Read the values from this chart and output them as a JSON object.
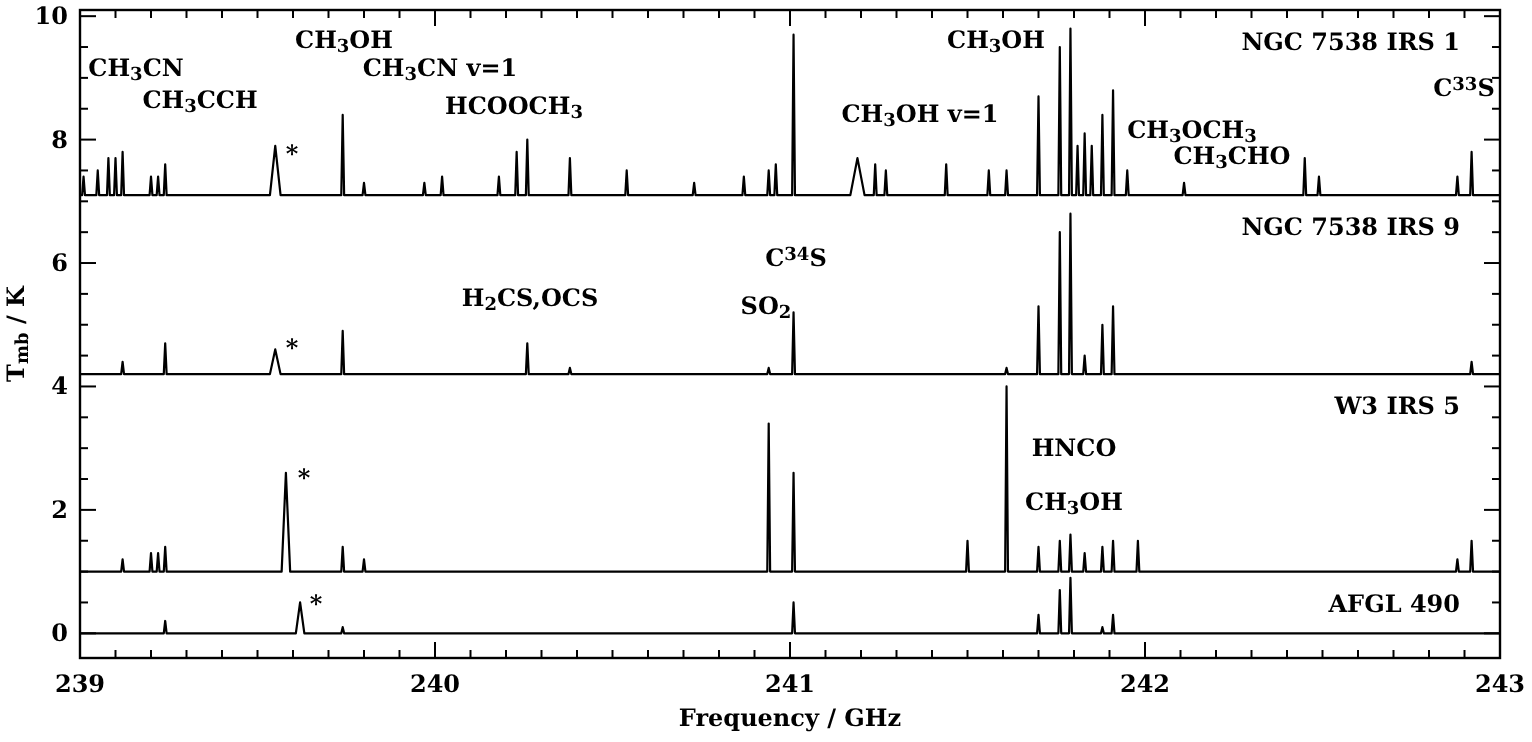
{
  "chart_data": {
    "type": "line",
    "xlabel": "Frequency / GHz",
    "ylabel": "T$_{mb}$ / K",
    "xlim": [
      239,
      243
    ],
    "ylim": [
      -0.4,
      10.1
    ],
    "xticks": [
      239,
      {
        "value": 239.1,
        "label": null
      },
      {
        "value": 239.2,
        "label": null
      },
      {
        "value": 239.3,
        "label": null
      },
      {
        "value": 239.4,
        "label": null
      },
      {
        "value": 239.5,
        "label": null
      },
      {
        "value": 239.6,
        "label": null
      },
      {
        "value": 239.7,
        "label": null
      },
      {
        "value": 239.8,
        "label": null
      },
      {
        "value": 239.9,
        "label": null
      },
      240,
      {
        "value": 240.1,
        "label": null
      },
      {
        "value": 240.2,
        "label": null
      },
      {
        "value": 240.3,
        "label": null
      },
      {
        "value": 240.4,
        "label": null
      },
      {
        "value": 240.5,
        "label": null
      },
      {
        "value": 240.6,
        "label": null
      },
      {
        "value": 240.7,
        "label": null
      },
      {
        "value": 240.8,
        "label": null
      },
      {
        "value": 240.9,
        "label": null
      },
      241,
      {
        "value": 241.1,
        "label": null
      },
      {
        "value": 241.2,
        "label": null
      },
      {
        "value": 241.3,
        "label": null
      },
      {
        "value": 241.4,
        "label": null
      },
      {
        "value": 241.5,
        "label": null
      },
      {
        "value": 241.6,
        "label": null
      },
      {
        "value": 241.7,
        "label": null
      },
      {
        "value": 241.8,
        "label": null
      },
      {
        "value": 241.9,
        "label": null
      },
      242,
      {
        "value": 242.1,
        "label": null
      },
      {
        "value": 242.2,
        "label": null
      },
      {
        "value": 242.3,
        "label": null
      },
      {
        "value": 242.4,
        "label": null
      },
      {
        "value": 242.5,
        "label": null
      },
      {
        "value": 242.6,
        "label": null
      },
      {
        "value": 242.7,
        "label": null
      },
      {
        "value": 242.8,
        "label": null
      },
      {
        "value": 242.9,
        "label": null
      },
      243
    ],
    "yticks": [
      0,
      {
        "value": 0.5,
        "label": null
      },
      {
        "value": 1,
        "label": null
      },
      {
        "value": 1.5,
        "label": null
      },
      2,
      {
        "value": 2.5,
        "label": null
      },
      {
        "value": 3,
        "label": null
      },
      {
        "value": 3.5,
        "label": null
      },
      4,
      {
        "value": 4.5,
        "label": null
      },
      {
        "value": 5,
        "label": null
      },
      {
        "value": 5.5,
        "label": null
      },
      6,
      {
        "value": 6.5,
        "label": null
      },
      {
        "value": 7,
        "label": null
      },
      {
        "value": 7.5,
        "label": null
      },
      8,
      {
        "value": 8.5,
        "label": null
      },
      {
        "value": 9,
        "label": null
      },
      {
        "value": 9.5,
        "label": null
      },
      10
    ],
    "grid": false,
    "legend": "right",
    "marker": "none",
    "line_style": "solid",
    "series": [
      {
        "name": "NGC 7538 IRS 1",
        "color": "#000000",
        "x": [
          239,
          239.006,
          239.01,
          239.014,
          239.046,
          239.05,
          239.054,
          239.076,
          239.08,
          239.084,
          239.096,
          239.1,
          239.104,
          239.116,
          239.12,
          239.124,
          239.196,
          239.2,
          239.204,
          239.216,
          239.22,
          239.224,
          239.236,
          239.24,
          239.244,
          239.535,
          239.55,
          239.565,
          239.736,
          239.74,
          239.744,
          239.796,
          239.8,
          239.804,
          239.966,
          239.97,
          239.974,
          240.016,
          240.02,
          240.024,
          240.176,
          240.18,
          240.184,
          240.226,
          240.23,
          240.234,
          240.256,
          240.26,
          240.264,
          240.376,
          240.38,
          240.384,
          240.536,
          240.54,
          240.544,
          240.726,
          240.73,
          240.734,
          240.866,
          240.87,
          240.874,
          240.936,
          240.94,
          240.944,
          240.956,
          240.96,
          240.964,
          241.006,
          241.01,
          241.014,
          241.17,
          241.19,
          241.21,
          241.236,
          241.24,
          241.244,
          241.266,
          241.27,
          241.274,
          241.436,
          241.44,
          241.444,
          241.556,
          241.56,
          241.564,
          241.606,
          241.61,
          241.614,
          241.696,
          241.7,
          241.704,
          241.756,
          241.76,
          241.764,
          241.786,
          241.79,
          241.794,
          241.806,
          241.81,
          241.814,
          241.826,
          241.83,
          241.834,
          241.846,
          241.85,
          241.854,
          241.876,
          241.88,
          241.884,
          241.906,
          241.91,
          241.914,
          241.946,
          241.95,
          241.954,
          242.106,
          242.11,
          242.114,
          242.446,
          242.45,
          242.454,
          242.486,
          242.49,
          242.494,
          242.876,
          242.88,
          242.884,
          242.916,
          242.92,
          242.924,
          243
        ],
        "values": [
          7.1,
          7.1,
          7.4,
          7.1,
          7.1,
          7.5,
          7.1,
          7.1,
          7.7,
          7.1,
          7.1,
          7.7,
          7.1,
          7.1,
          7.8,
          7.1,
          7.1,
          7.4,
          7.1,
          7.1,
          7.4,
          7.1,
          7.1,
          7.6,
          7.1,
          7.1,
          7.9,
          7.1,
          7.1,
          8.4,
          7.1,
          7.1,
          7.3,
          7.1,
          7.1,
          7.3,
          7.1,
          7.1,
          7.4,
          7.1,
          7.1,
          7.4,
          7.1,
          7.1,
          7.8,
          7.1,
          7.1,
          8.0,
          7.1,
          7.1,
          7.7,
          7.1,
          7.1,
          7.5,
          7.1,
          7.1,
          7.3,
          7.1,
          7.1,
          7.4,
          7.1,
          7.1,
          7.5,
          7.1,
          7.1,
          7.6,
          7.1,
          7.1,
          9.7,
          7.1,
          7.1,
          7.7,
          7.1,
          7.1,
          7.6,
          7.1,
          7.1,
          7.5,
          7.1,
          7.1,
          7.6,
          7.1,
          7.1,
          7.5,
          7.1,
          7.1,
          7.5,
          7.1,
          7.1,
          8.7,
          7.1,
          7.1,
          9.5,
          7.1,
          7.1,
          9.8,
          7.1,
          7.1,
          7.9,
          7.1,
          7.1,
          8.1,
          7.1,
          7.1,
          7.9,
          7.1,
          7.1,
          8.4,
          7.1,
          7.1,
          8.8,
          7.1,
          7.1,
          7.5,
          7.1,
          7.1,
          7.3,
          7.1,
          7.1,
          7.7,
          7.1,
          7.1,
          7.4,
          7.1,
          7.1,
          7.4,
          7.1,
          7.1,
          7.8,
          7.1,
          7.1
        ]
      },
      {
        "name": "NGC 7538 IRS 9",
        "color": "#000000",
        "x": [
          239,
          239.116,
          239.12,
          239.124,
          239.236,
          239.24,
          239.244,
          239.535,
          239.55,
          239.565,
          239.736,
          239.74,
          239.744,
          240.256,
          240.26,
          240.264,
          240.376,
          240.38,
          240.384,
          240.936,
          240.94,
          240.944,
          241.006,
          241.01,
          241.014,
          241.606,
          241.61,
          241.614,
          241.696,
          241.7,
          241.704,
          241.756,
          241.76,
          241.764,
          241.786,
          241.79,
          241.794,
          241.826,
          241.83,
          241.834,
          241.876,
          241.88,
          241.884,
          241.906,
          241.91,
          241.914,
          242.916,
          242.92,
          242.924,
          243
        ],
        "values": [
          4.2,
          4.2,
          4.4,
          4.2,
          4.2,
          4.7,
          4.2,
          4.2,
          4.6,
          4.2,
          4.2,
          4.9,
          4.2,
          4.2,
          4.7,
          4.2,
          4.2,
          4.3,
          4.2,
          4.2,
          4.3,
          4.2,
          4.2,
          5.2,
          4.2,
          4.2,
          4.3,
          4.2,
          4.2,
          5.3,
          4.2,
          4.2,
          6.5,
          4.2,
          4.2,
          6.8,
          4.2,
          4.2,
          4.5,
          4.2,
          4.2,
          5.0,
          4.2,
          4.2,
          5.3,
          4.2,
          4.2,
          4.4,
          4.2,
          4.2
        ]
      },
      {
        "name": "W3 IRS 5",
        "color": "#000000",
        "x": [
          239,
          239.116,
          239.12,
          239.124,
          239.196,
          239.2,
          239.204,
          239.216,
          239.22,
          239.224,
          239.236,
          239.24,
          239.244,
          239.568,
          239.58,
          239.592,
          239.736,
          239.74,
          239.744,
          239.796,
          239.8,
          239.804,
          240.936,
          240.94,
          240.944,
          241.006,
          241.01,
          241.014,
          241.496,
          241.5,
          241.504,
          241.606,
          241.61,
          241.614,
          241.696,
          241.7,
          241.704,
          241.756,
          241.76,
          241.764,
          241.786,
          241.79,
          241.794,
          241.826,
          241.83,
          241.834,
          241.876,
          241.88,
          241.884,
          241.906,
          241.91,
          241.914,
          241.976,
          241.98,
          241.984,
          242.876,
          242.88,
          242.884,
          242.916,
          242.92,
          242.924,
          243
        ],
        "values": [
          1.0,
          1.0,
          1.2,
          1.0,
          1.0,
          1.3,
          1.0,
          1.0,
          1.3,
          1.0,
          1.0,
          1.4,
          1.0,
          1.0,
          2.6,
          1.0,
          1.0,
          1.4,
          1.0,
          1.0,
          1.2,
          1.0,
          1.0,
          3.4,
          1.0,
          1.0,
          2.6,
          1.0,
          1.0,
          1.5,
          1.0,
          1.0,
          4.0,
          1.0,
          1.0,
          1.4,
          1.0,
          1.0,
          1.5,
          1.0,
          1.0,
          1.6,
          1.0,
          1.0,
          1.3,
          1.0,
          1.0,
          1.4,
          1.0,
          1.0,
          1.5,
          1.0,
          1.0,
          1.5,
          1.0,
          1.0,
          1.2,
          1.0,
          1.0,
          1.5,
          1.0,
          1.0
        ]
      },
      {
        "name": "AFGL 490",
        "color": "#000000",
        "x": [
          239,
          239.236,
          239.24,
          239.244,
          239.608,
          239.62,
          239.632,
          239.736,
          239.74,
          239.744,
          241.006,
          241.01,
          241.014,
          241.696,
          241.7,
          241.704,
          241.756,
          241.76,
          241.764,
          241.786,
          241.79,
          241.794,
          241.876,
          241.88,
          241.884,
          241.906,
          241.91,
          241.914,
          243
        ],
        "values": [
          0,
          0,
          0.2,
          0,
          0,
          0.5,
          0,
          0,
          0.1,
          0,
          0,
          0.5,
          0,
          0,
          0.3,
          0,
          0,
          0.7,
          0,
          0,
          0.9,
          0,
          0,
          0.1,
          0,
          0,
          0.3,
          0,
          0
        ]
      }
    ],
    "annotations": [
      "CH$_{3}$CN",
      "CH$_{3}$CCH",
      "CH$_{3}$OH",
      "CH$_{3}$CN v=1",
      "HCOOCH$_{3}$",
      "*",
      "H$_{2}$CS,OCS",
      "SO$_{2}$",
      "C$^{34}$S",
      "*",
      "CH$_{3}$OH",
      "CH$_{3}$OH v=1",
      "CH$_{3}$OCH$_{3}$",
      "CH$_{3}$CHO",
      "C$^{33}$S",
      "*",
      "HNCO",
      "CH$_{3}$OH",
      "*"
    ]
  }
}
